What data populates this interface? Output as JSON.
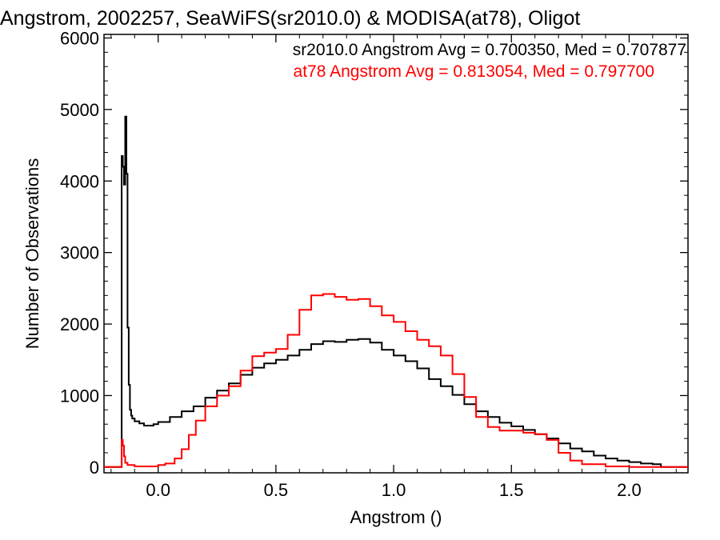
{
  "chart_data": {
    "type": "line",
    "title": "Angstrom, 2002257, SeaWiFS(sr2010.0) & MODISA(at78), Oligot",
    "xlabel": "Angstrom ()",
    "ylabel": "Number of Observations",
    "xlim": [
      -0.23,
      2.25
    ],
    "ylim": [
      -80,
      6050
    ],
    "xticks": [
      0.0,
      0.5,
      1.0,
      1.5,
      2.0
    ],
    "xtick_labels": [
      "0.0",
      "0.5",
      "1.0",
      "1.5",
      "2.0"
    ],
    "yticks": [
      0,
      1000,
      2000,
      3000,
      4000,
      5000,
      6000
    ],
    "ytick_labels": [
      "0",
      "1000",
      "2000",
      "3000",
      "4000",
      "5000",
      "6000"
    ],
    "grid": false,
    "legend_placement": "top-right",
    "annotations": [
      "sr2010.0 Angstrom Avg = 0.700350, Med = 0.707877",
      "at78 Angstrom Avg = 0.813054, Med = 0.797700"
    ],
    "colors": {
      "sr2010": "#000000",
      "at78": "#ff0000"
    },
    "series": [
      {
        "color": "#000000",
        "x": [
          -0.23,
          -0.16,
          -0.155,
          -0.15,
          -0.145,
          -0.14,
          -0.135,
          -0.13,
          -0.125,
          -0.12,
          -0.115,
          -0.11,
          -0.1,
          -0.08,
          -0.06,
          -0.04,
          -0.02,
          0.0,
          0.05,
          0.1,
          0.15,
          0.2,
          0.25,
          0.3,
          0.35,
          0.4,
          0.45,
          0.5,
          0.55,
          0.6,
          0.65,
          0.7,
          0.75,
          0.8,
          0.85,
          0.9,
          0.95,
          1.0,
          1.05,
          1.1,
          1.15,
          1.2,
          1.25,
          1.3,
          1.35,
          1.4,
          1.45,
          1.5,
          1.55,
          1.6,
          1.65,
          1.7,
          1.75,
          1.8,
          1.85,
          1.9,
          1.95,
          2.0,
          2.05,
          2.1,
          2.13,
          2.135,
          2.25
        ],
        "y": [
          0,
          0,
          4350,
          4200,
          3950,
          4900,
          4100,
          1950,
          1150,
          800,
          720,
          680,
          640,
          610,
          580,
          580,
          600,
          630,
          700,
          780,
          850,
          970,
          1070,
          1170,
          1290,
          1390,
          1450,
          1500,
          1560,
          1640,
          1720,
          1760,
          1750,
          1780,
          1790,
          1740,
          1640,
          1560,
          1480,
          1380,
          1230,
          1130,
          1010,
          880,
          780,
          700,
          620,
          570,
          520,
          460,
          400,
          330,
          260,
          220,
          160,
          120,
          90,
          70,
          50,
          40,
          40,
          0,
          0
        ]
      },
      {
        "color": "#ff0000",
        "x": [
          -0.23,
          -0.16,
          -0.155,
          -0.15,
          -0.145,
          -0.14,
          -0.13,
          -0.1,
          -0.05,
          0.0,
          0.03,
          0.07,
          0.1,
          0.13,
          0.16,
          0.2,
          0.25,
          0.3,
          0.35,
          0.4,
          0.45,
          0.5,
          0.55,
          0.6,
          0.65,
          0.7,
          0.75,
          0.8,
          0.85,
          0.9,
          0.95,
          1.0,
          1.05,
          1.1,
          1.15,
          1.2,
          1.25,
          1.3,
          1.35,
          1.4,
          1.45,
          1.5,
          1.55,
          1.6,
          1.65,
          1.7,
          1.75,
          1.8,
          1.9,
          2.0,
          2.25
        ],
        "y": [
          0,
          0,
          380,
          300,
          150,
          60,
          30,
          10,
          10,
          30,
          50,
          120,
          250,
          450,
          650,
          850,
          1000,
          1130,
          1350,
          1550,
          1600,
          1650,
          1850,
          2200,
          2400,
          2420,
          2380,
          2340,
          2350,
          2250,
          2120,
          2030,
          1900,
          1780,
          1690,
          1560,
          1300,
          980,
          700,
          560,
          510,
          510,
          480,
          460,
          380,
          200,
          90,
          40,
          10,
          0,
          0
        ]
      }
    ]
  }
}
